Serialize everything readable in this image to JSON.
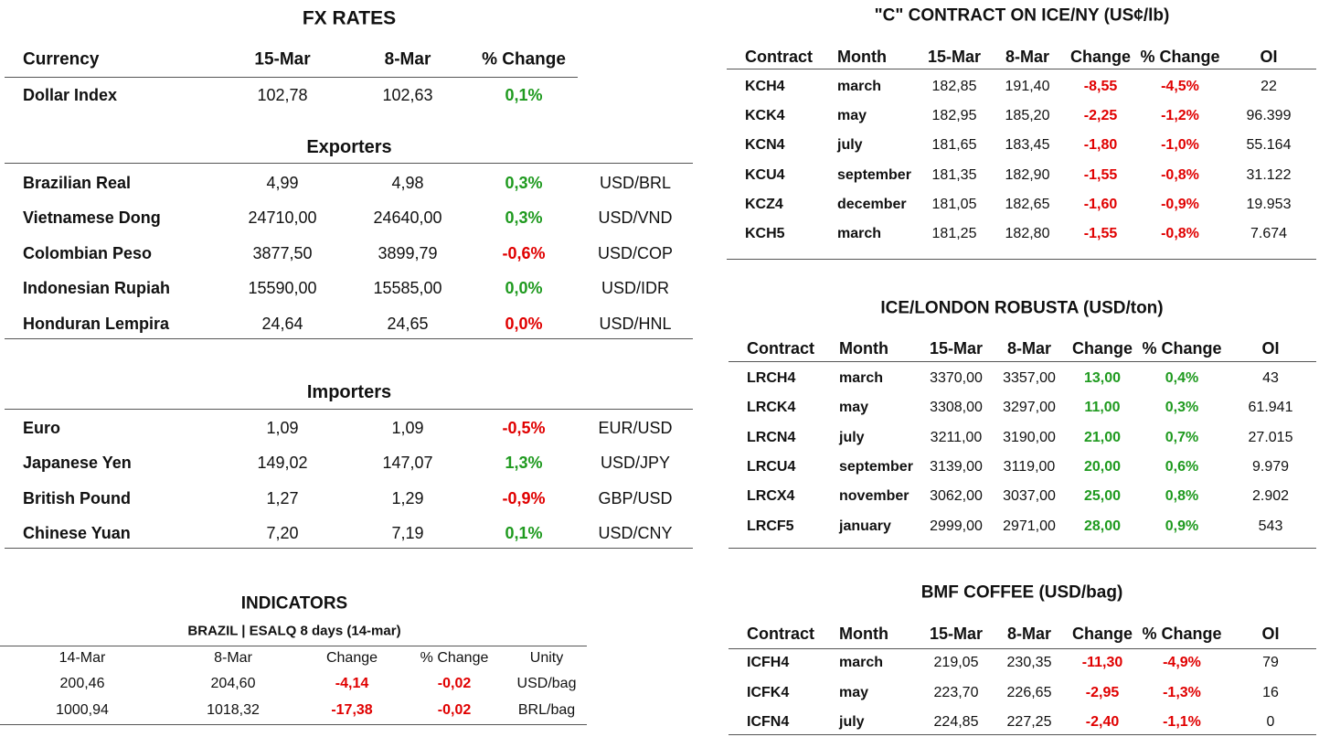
{
  "fx": {
    "title": "FX RATES",
    "headers": [
      "Currency",
      "15-Mar",
      "8-Mar",
      "% Change"
    ],
    "dollar_index": {
      "cells": [
        "Dollar Index",
        "102,78",
        "102,63",
        "0,1%"
      ],
      "color": "#1f9a1f"
    },
    "exporters": {
      "title": "Exporters",
      "rows": [
        {
          "cells": [
            "Brazilian Real",
            "4,99",
            "4,98",
            "0,3%",
            "USD/BRL"
          ],
          "color": "#1f9a1f"
        },
        {
          "cells": [
            "Vietnamese Dong",
            "24710,00",
            "24640,00",
            "0,3%",
            "USD/VND"
          ],
          "color": "#1f9a1f"
        },
        {
          "cells": [
            "Colombian Peso",
            "3877,50",
            "3899,79",
            "-0,6%",
            "USD/COP"
          ],
          "color": "#e00000"
        },
        {
          "cells": [
            "Indonesian Rupiah",
            "15590,00",
            "15585,00",
            "0,0%",
            "USD/IDR"
          ],
          "color": "#1f9a1f"
        },
        {
          "cells": [
            "Honduran Lempira",
            "24,64",
            "24,65",
            "0,0%",
            "USD/HNL"
          ],
          "color": "#e00000"
        }
      ]
    },
    "importers": {
      "title": "Importers",
      "rows": [
        {
          "cells": [
            "Euro",
            "1,09",
            "1,09",
            "-0,5%",
            "EUR/USD"
          ],
          "color": "#e00000"
        },
        {
          "cells": [
            "Japanese Yen",
            "149,02",
            "147,07",
            "1,3%",
            "USD/JPY"
          ],
          "color": "#1f9a1f"
        },
        {
          "cells": [
            "British Pound",
            "1,27",
            "1,29",
            "-0,9%",
            "GBP/USD"
          ],
          "color": "#e00000"
        },
        {
          "cells": [
            "Chinese Yuan",
            "7,20",
            "7,19",
            "0,1%",
            "USD/CNY"
          ],
          "color": "#1f9a1f"
        }
      ]
    }
  },
  "indicators": {
    "title": "INDICATORS",
    "subtitle": "BRAZIL | ESALQ 8 days (14-mar)",
    "headers": [
      "14-Mar",
      "8-Mar",
      "Change",
      "% Change",
      "Unity"
    ],
    "rows": [
      [
        "200,46",
        "204,60",
        "-4,14",
        "-0,02",
        "USD/bag"
      ],
      [
        "1000,94",
        "1018,32",
        "-17,38",
        "-0,02",
        "BRL/bag"
      ]
    ],
    "change_color": "#e00000"
  },
  "ice_ny": {
    "title": "\"C\" CONTRACT ON ICE/NY (US¢/lb)",
    "headers": [
      "Contract",
      "Month",
      "15-Mar",
      "8-Mar",
      "Change",
      "% Change",
      "OI"
    ],
    "rows": [
      [
        "KCH4",
        "march",
        "182,85",
        "191,40",
        "-8,55",
        "-4,5%",
        "22"
      ],
      [
        "KCK4",
        "may",
        "182,95",
        "185,20",
        "-2,25",
        "-1,2%",
        "96.399"
      ],
      [
        "KCN4",
        "july",
        "181,65",
        "183,45",
        "-1,80",
        "-1,0%",
        "55.164"
      ],
      [
        "KCU4",
        "september",
        "181,35",
        "182,90",
        "-1,55",
        "-0,8%",
        "31.122"
      ],
      [
        "KCZ4",
        "december",
        "181,05",
        "182,65",
        "-1,60",
        "-0,9%",
        "19.953"
      ],
      [
        "KCH5",
        "march",
        "181,25",
        "182,80",
        "-1,55",
        "-0,8%",
        "7.674"
      ]
    ],
    "change_color": "#e00000"
  },
  "ice_london": {
    "title": "ICE/LONDON ROBUSTA (USD/ton)",
    "headers": [
      "Contract",
      "Month",
      "15-Mar",
      "8-Mar",
      "Change",
      "% Change",
      "OI"
    ],
    "rows": [
      [
        "LRCH4",
        "march",
        "3370,00",
        "3357,00",
        "13,00",
        "0,4%",
        "43"
      ],
      [
        "LRCK4",
        "may",
        "3308,00",
        "3297,00",
        "11,00",
        "0,3%",
        "61.941"
      ],
      [
        "LRCN4",
        "july",
        "3211,00",
        "3190,00",
        "21,00",
        "0,7%",
        "27.015"
      ],
      [
        "LRCU4",
        "september",
        "3139,00",
        "3119,00",
        "20,00",
        "0,6%",
        "9.979"
      ],
      [
        "LRCX4",
        "november",
        "3062,00",
        "3037,00",
        "25,00",
        "0,8%",
        "2.902"
      ],
      [
        "LRCF5",
        "january",
        "2999,00",
        "2971,00",
        "28,00",
        "0,9%",
        "543"
      ]
    ],
    "change_color": "#1f9a1f"
  },
  "bmf": {
    "title": "BMF COFFEE (USD/bag)",
    "headers": [
      "Contract",
      "Month",
      "15-Mar",
      "8-Mar",
      "Change",
      "% Change",
      "OI"
    ],
    "rows": [
      [
        "ICFH4",
        "march",
        "219,05",
        "230,35",
        "-11,30",
        "-4,9%",
        "79"
      ],
      [
        "ICFK4",
        "may",
        "223,70",
        "226,65",
        "-2,95",
        "-1,3%",
        "16"
      ],
      [
        "ICFN4",
        "july",
        "224,85",
        "227,25",
        "-2,40",
        "-1,1%",
        "0"
      ]
    ],
    "change_color": "#e00000"
  }
}
